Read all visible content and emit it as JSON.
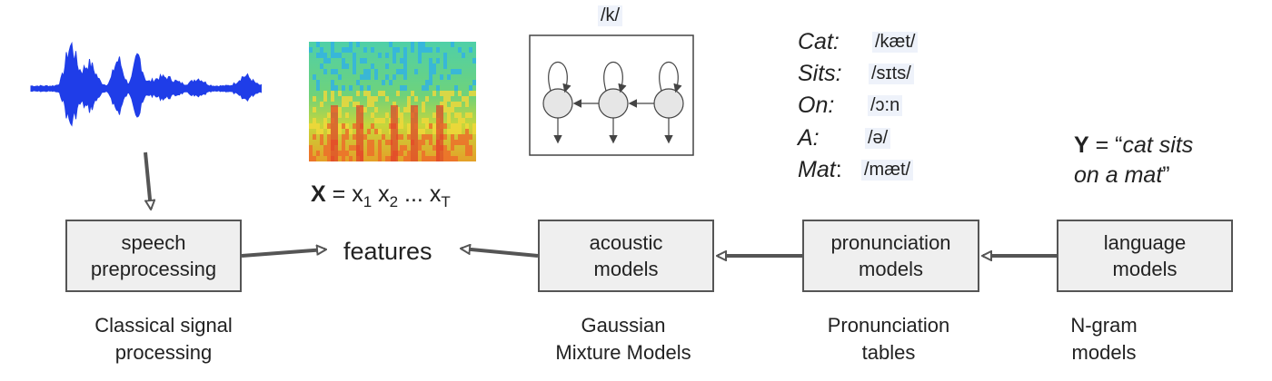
{
  "boxes": {
    "speech": "speech\npreprocessing",
    "acoustic": "acoustic\nmodels",
    "pronunciation": "pronunciation\nmodels",
    "language": "language\nmodels"
  },
  "features_label": "features",
  "captions": {
    "speech": "Classical signal\nprocessing",
    "acoustic": "Gaussian\nMixture Models",
    "pronunciation": "Pronunciation\ntables",
    "language": "N-gram\nmodels"
  },
  "x_equation": {
    "var": "X",
    "eq": " = ",
    "x": "x",
    "subs": [
      "1",
      "2",
      "T"
    ],
    "dots": "..."
  },
  "hmm_label": "/k/",
  "lexicon": [
    {
      "word": "Cat:",
      "ipa": "/kæt/"
    },
    {
      "word": "Sits:",
      "ipa": "/sɪts/"
    },
    {
      "word": "On:",
      "ipa": "/ɔ:n"
    },
    {
      "word": "A:",
      "ipa": "/ə/"
    },
    {
      "word": "Mat",
      "colon": ":",
      "ipa": "/mæt/"
    }
  ],
  "y_equation": {
    "var": "Y",
    "eq": " = “",
    "phrase_line1": "cat sits",
    "phrase_line2": "on a mat",
    "close_quote": "”"
  },
  "colors": {
    "waveform": "#1f3de8",
    "box_fill": "#efefef",
    "box_border": "#555555",
    "arrow": "#555555",
    "ipa_highlight": "#eef2fa"
  }
}
